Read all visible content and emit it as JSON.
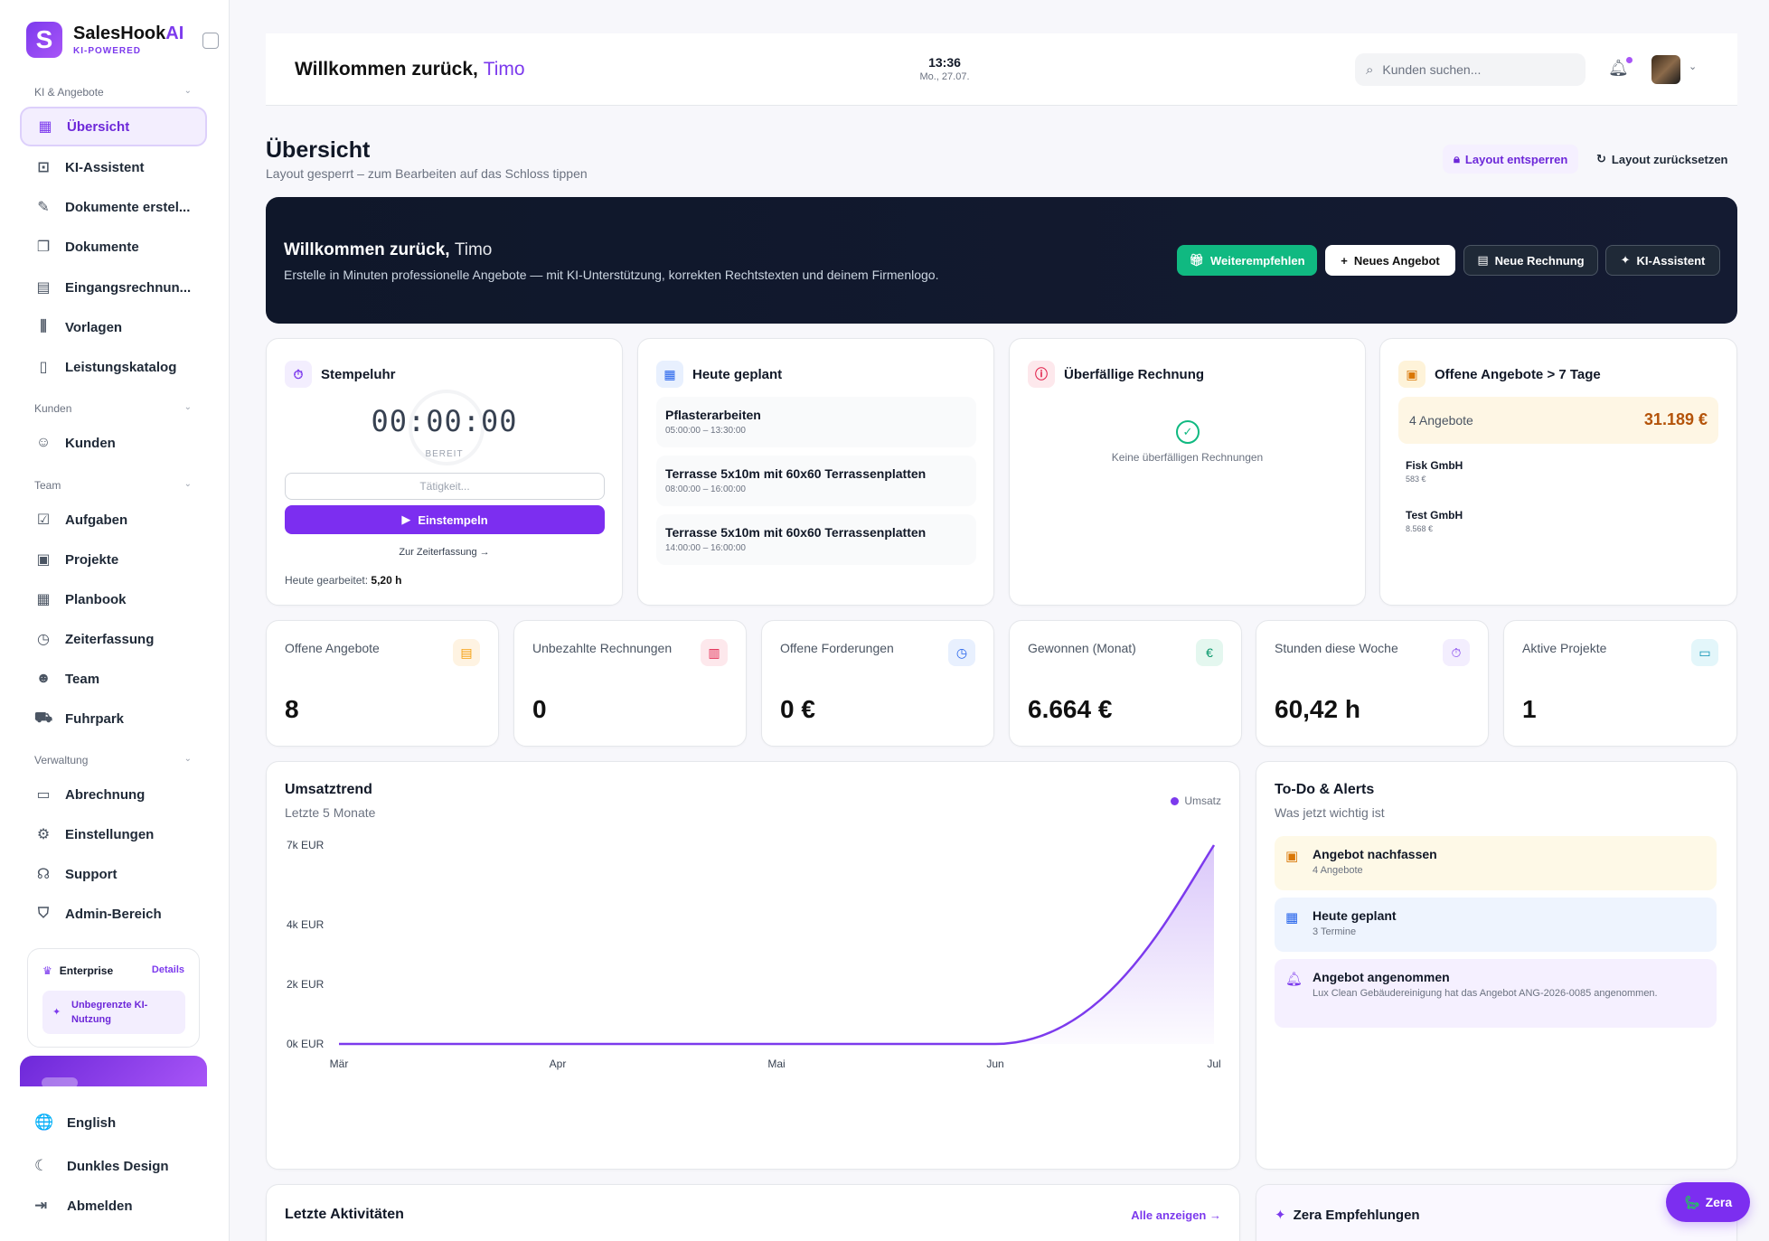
{
  "app": {
    "name_main": "SalesHook",
    "name_accent": "AI",
    "tagline": "KI-POWERED",
    "logo_letter": "S"
  },
  "sidebar": {
    "sections": [
      {
        "label": "KI & Angebote"
      },
      {
        "label": "Kunden"
      },
      {
        "label": "Team"
      },
      {
        "label": "Verwaltung"
      }
    ],
    "items": [
      {
        "label": "Übersicht",
        "icon": "grid-icon"
      },
      {
        "label": "KI-Assistent",
        "icon": "robot-icon"
      },
      {
        "label": "Dokumente erstel...",
        "icon": "pen-icon"
      },
      {
        "label": "Dokumente",
        "icon": "files-icon"
      },
      {
        "label": "Eingangsrechnun...",
        "icon": "receipt-icon"
      },
      {
        "label": "Vorlagen",
        "icon": "library-icon"
      },
      {
        "label": "Leistungskatalog",
        "icon": "book-icon"
      },
      {
        "label": "Kunden",
        "icon": "users-icon"
      },
      {
        "label": "Aufgaben",
        "icon": "checkbox-icon"
      },
      {
        "label": "Projekte",
        "icon": "chart-folder-icon"
      },
      {
        "label": "Planbook",
        "icon": "calendar-icon"
      },
      {
        "label": "Zeiterfassung",
        "icon": "clock-icon"
      },
      {
        "label": "Team",
        "icon": "team-icon"
      },
      {
        "label": "Fuhrpark",
        "icon": "car-icon"
      },
      {
        "label": "Abrechnung",
        "icon": "card-icon"
      },
      {
        "label": "Einstellungen",
        "icon": "gear-icon"
      },
      {
        "label": "Support",
        "icon": "headset-icon"
      },
      {
        "label": "Admin-Bereich",
        "icon": "shield-icon"
      }
    ],
    "plan": {
      "name": "Enterprise",
      "details": "Details",
      "badge": "Unbegrenzte KI-Nutzung"
    },
    "bottom": [
      {
        "label": "English",
        "icon": "globe-icon"
      },
      {
        "label": "Dunkles Design",
        "icon": "moon-icon"
      },
      {
        "label": "Abmelden",
        "icon": "logout-icon"
      }
    ]
  },
  "header": {
    "welcome": "Willkommen zurück,",
    "user": "Timo",
    "time": "13:36",
    "date": "Mo., 27.07.",
    "search_placeholder": "Kunden suchen..."
  },
  "page": {
    "title": "Übersicht",
    "subtitle": "Layout gesperrt – zum Bearbeiten auf das Schloss tippen",
    "unlock": "Layout entsperren",
    "reset": "Layout zurücksetzen"
  },
  "hero": {
    "welcome": "Willkommen zurück,",
    "user": "Timo",
    "subtitle": "Erstelle in Minuten professionelle Angebote — mit KI-Unterstützung, korrekten Rechtstexten und deinem Firmenlogo.",
    "buttons": [
      "Weiterempfehlen",
      "Neues Angebot",
      "Neue Rechnung",
      "KI-Assistent"
    ]
  },
  "stempeluhr": {
    "title": "Stempeluhr",
    "timer": "00:00:00",
    "status": "BEREIT",
    "placeholder": "Tätigkeit...",
    "button": "Einstempeln",
    "link": "Zur Zeiterfassung →",
    "worked_label": "Heute gearbeitet:",
    "worked_value": "5,20 h"
  },
  "heute": {
    "title": "Heute geplant",
    "items": [
      {
        "name": "Pflasterarbeiten",
        "time": "05:00:00 – 13:30:00"
      },
      {
        "name": "Terrasse 5x10m mit 60x60 Terrassenplatten",
        "time": "08:00:00 – 16:00:00"
      },
      {
        "name": "Terrasse 5x10m mit 60x60 Terrassenplatten",
        "time": "14:00:00 – 16:00:00"
      }
    ]
  },
  "overdue": {
    "title": "Überfällige Rechnung",
    "empty": "Keine überfälligen Rechnungen"
  },
  "offene7": {
    "title": "Offene Angebote > 7 Tage",
    "count": "4 Angebote",
    "total": "31.189 €",
    "customers": [
      {
        "name": "Fisk GmbH",
        "amount": "583 €"
      },
      {
        "name": "Test GmbH",
        "amount": "8.568 €"
      }
    ]
  },
  "stats": [
    {
      "label": "Offene Angebote",
      "value": "8",
      "icon": "document-icon",
      "color": "#f59e0b"
    },
    {
      "label": "Unbezahlte Rechnungen",
      "value": "0",
      "icon": "clipboard-icon",
      "color": "#e11d48"
    },
    {
      "label": "Offene Forderungen",
      "value": "0 €",
      "icon": "clock-icon",
      "color": "#2563eb"
    },
    {
      "label": "Gewonnen (Monat)",
      "value": "6.664 €",
      "icon": "euro-icon",
      "color": "#059669"
    },
    {
      "label": "Stunden diese Woche",
      "value": "60,42 h",
      "icon": "stopwatch-icon",
      "color": "#7c3aed"
    },
    {
      "label": "Aktive Projekte",
      "value": "1",
      "icon": "folder-icon",
      "color": "#0891b2"
    }
  ],
  "chart_data": {
    "type": "area",
    "title": "Umsatztrend",
    "subtitle": "Letzte 5 Monate",
    "categories": [
      "Mär",
      "Apr",
      "Mai",
      "Jun",
      "Jul"
    ],
    "series": [
      {
        "name": "Umsatz",
        "values": [
          0,
          0,
          0,
          0,
          6664
        ],
        "color": "#7c3aed"
      }
    ],
    "y_ticks": [
      {
        "value": 0,
        "label": "0k EUR"
      },
      {
        "value": 2000,
        "label": "2k EUR"
      },
      {
        "value": 4000,
        "label": "4k EUR"
      },
      {
        "value": 6664,
        "label": "7k EUR"
      }
    ],
    "ylim": [
      0,
      6664
    ],
    "grid": false,
    "legend": "top-right"
  },
  "todo": {
    "title": "To-Do & Alerts",
    "subtitle": "Was jetzt wichtig ist",
    "items": [
      {
        "title": "Angebot nachfassen",
        "sub": "4 Angebote",
        "icon": "briefcase-icon",
        "bg": "#fef9e7",
        "color": "#d97706"
      },
      {
        "title": "Heute geplant",
        "sub": "3 Termine",
        "icon": "calendar-icon",
        "bg": "#eef4fe",
        "color": "#2563eb"
      },
      {
        "title": "Angebot angenommen",
        "sub": "Lux Clean Gebäudereinigung hat das Angebot ANG-2026-0085 angenommen.",
        "icon": "bell-icon",
        "bg": "#f5f0ff",
        "color": "#7c3aed"
      }
    ]
  },
  "activities": {
    "title": "Letzte Aktivitäten",
    "link": "Alle anzeigen →"
  },
  "zera_rec": {
    "title": "Zera Empfehlungen"
  },
  "zera_button": "Zera"
}
